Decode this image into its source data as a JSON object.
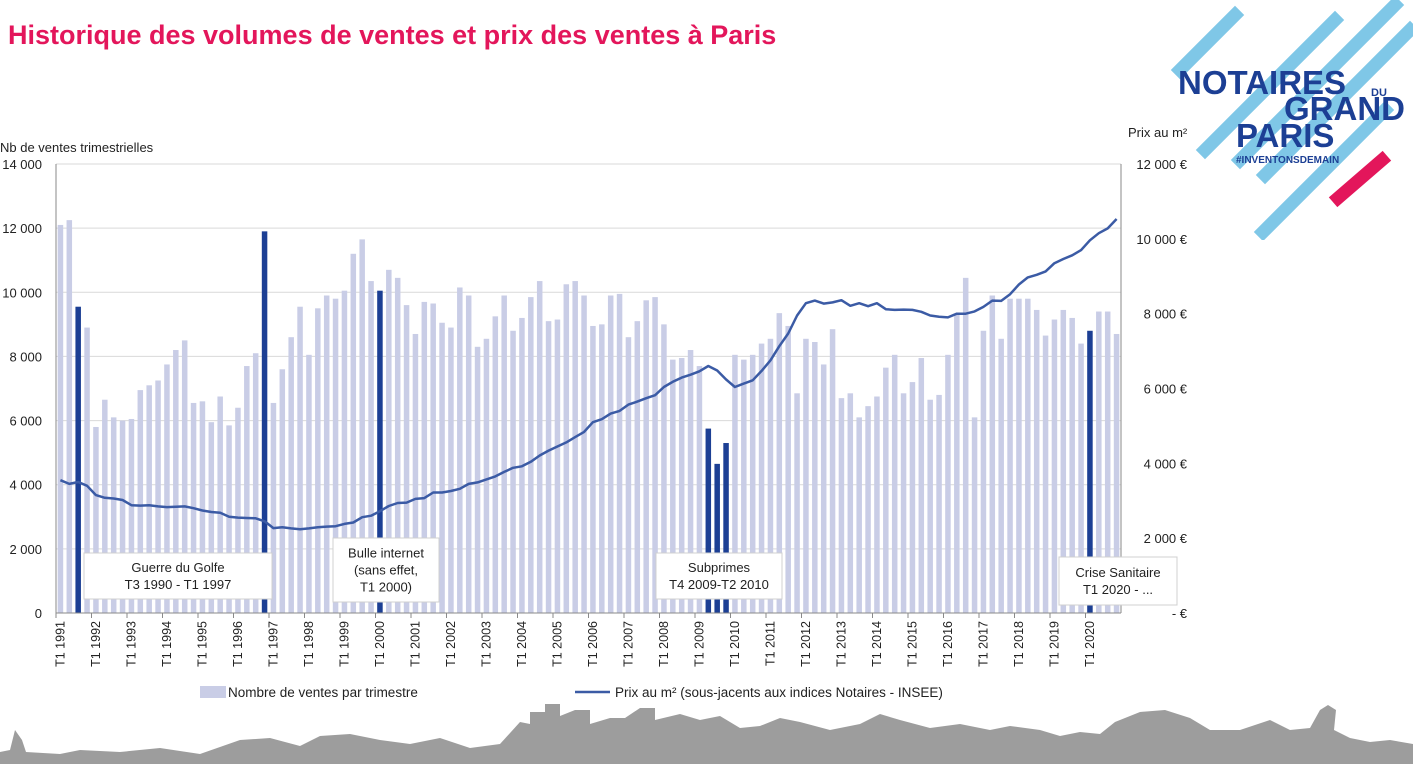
{
  "slide": {
    "title": "Historique des volumes de ventes et prix des ventes à Paris"
  },
  "logo": {
    "line1": "NOTAIRES",
    "du": "DU",
    "line2": "GRAND",
    "line3": "PARIS",
    "tagline": "#INVENTONSDEMAIN",
    "colors": {
      "navy": "#1c3f94",
      "light_blue": "#7fc7e7",
      "pink": "#e3165b"
    }
  },
  "chart_data": {
    "type": "bar",
    "title": "",
    "ylabel_left": "Nb de ventes trimestrielles",
    "ylabel_right": "Prix au m²",
    "left_axis": {
      "min": 0,
      "max": 14000,
      "step": 2000,
      "tick_labels": [
        "0",
        "2 000",
        "4 000",
        "6 000",
        "8 000",
        "10 000",
        "12 000",
        "14 000"
      ]
    },
    "right_axis": {
      "min": 0,
      "max": 12000,
      "step": 2000,
      "tick_labels": [
        "-  €",
        "2 000 €",
        "4 000 €",
        "6 000 €",
        "8 000 €",
        "10 000 €",
        "12 000 €"
      ]
    },
    "x_labels": [
      "T1 1991",
      "T1 1992",
      "T1 1993",
      "T1 1994",
      "T1 1995",
      "T1 1996",
      "T1 1997",
      "T1 1998",
      "T1 1999",
      "T1 2000",
      "T1 2001",
      "T1 2002",
      "T1 2003",
      "T1 2004",
      "T1 2005",
      "T1 2006",
      "T1 2007",
      "T1 2008",
      "T1 2009",
      "T1 2010",
      "T1 2011",
      "T1 2012",
      "T1 2013",
      "T1 2014",
      "T1 2015",
      "T1 2016",
      "T1 2017",
      "T1 2018",
      "T1 2019",
      "T1 2020"
    ],
    "grid": true,
    "legend_position": "bottom",
    "series": [
      {
        "name": "Nombre de ventes par trimestre",
        "kind": "bar",
        "axis": "left",
        "color": "#c9cde6",
        "values": [
          12100,
          12250,
          9550,
          8900,
          5800,
          6650,
          6100,
          6000,
          6050,
          6950,
          7100,
          7250,
          7750,
          8200,
          8500,
          6550,
          6600,
          5950,
          6750,
          5850,
          6400,
          7700,
          8100,
          11900,
          6550,
          7600,
          8600,
          9550,
          8050,
          9500,
          9900,
          9800,
          10050,
          11200,
          11650,
          10350,
          10050,
          10700,
          10450,
          9600,
          8700,
          9700,
          9650,
          9050,
          8900,
          10150,
          9900,
          8300,
          8550,
          9250,
          9900,
          8800,
          9200,
          9850,
          10350,
          9100,
          9150,
          10250,
          10350,
          9900,
          8950,
          9000,
          9900,
          9950,
          8600,
          9100,
          9750,
          9850,
          9000,
          7900,
          7950,
          8200,
          7700,
          5750,
          4650,
          5300,
          8050,
          7900,
          8050,
          8400,
          8550,
          9350,
          8950,
          6850,
          8550,
          8450,
          7750,
          8850,
          6700,
          6850,
          6100,
          6450,
          6750,
          7650,
          8050,
          6850,
          7200,
          7950,
          6650,
          6800,
          8050,
          9300,
          10450,
          6100,
          8800,
          9900,
          8550,
          9800,
          9800,
          9800,
          9450,
          8650,
          9150,
          9450,
          9200,
          8400,
          8800,
          9400,
          9400,
          8700
        ],
        "highlight_color": "#1c3f94",
        "highlight_indices": [
          2,
          23,
          36,
          73,
          74,
          75,
          116
        ]
      },
      {
        "name": "Prix au m² (sous-jacents aux indices Notaires - INSEE)",
        "kind": "line",
        "axis": "right",
        "color": "#3b5ba5",
        "values": [
          3550,
          3450,
          3500,
          3400,
          3150,
          3080,
          3060,
          3020,
          2880,
          2870,
          2880,
          2850,
          2830,
          2840,
          2850,
          2800,
          2740,
          2700,
          2680,
          2570,
          2550,
          2540,
          2530,
          2450,
          2270,
          2290,
          2260,
          2240,
          2260,
          2290,
          2310,
          2320,
          2380,
          2420,
          2560,
          2600,
          2720,
          2860,
          2940,
          2950,
          3050,
          3070,
          3220,
          3220,
          3260,
          3320,
          3450,
          3490,
          3570,
          3650,
          3770,
          3880,
          3920,
          4040,
          4210,
          4340,
          4450,
          4560,
          4700,
          4840,
          5100,
          5180,
          5330,
          5400,
          5570,
          5650,
          5740,
          5820,
          6040,
          6180,
          6290,
          6370,
          6460,
          6600,
          6480,
          6240,
          6040,
          6130,
          6220,
          6470,
          6750,
          7130,
          7470,
          7950,
          8280,
          8350,
          8270,
          8300,
          8360,
          8210,
          8280,
          8200,
          8280,
          8120,
          8100,
          8110,
          8100,
          8050,
          7950,
          7920,
          7900,
          8000,
          8000,
          8060,
          8180,
          8350,
          8340,
          8520,
          8780,
          8970,
          9040,
          9130,
          9350,
          9460,
          9560,
          9700,
          9960,
          10150,
          10280,
          10530
        ]
      }
    ],
    "annotations": [
      {
        "label": [
          "Guerre du Golfe",
          "T3 1990 - T1 1997"
        ]
      },
      {
        "label": [
          "Bulle internet",
          "(sans effet,",
          "T1 2000)"
        ]
      },
      {
        "label": [
          "Subprimes",
          "T4 2009-T2 2010"
        ]
      },
      {
        "label": [
          "Crise Sanitaire",
          "T1 2020 - ..."
        ]
      }
    ]
  }
}
